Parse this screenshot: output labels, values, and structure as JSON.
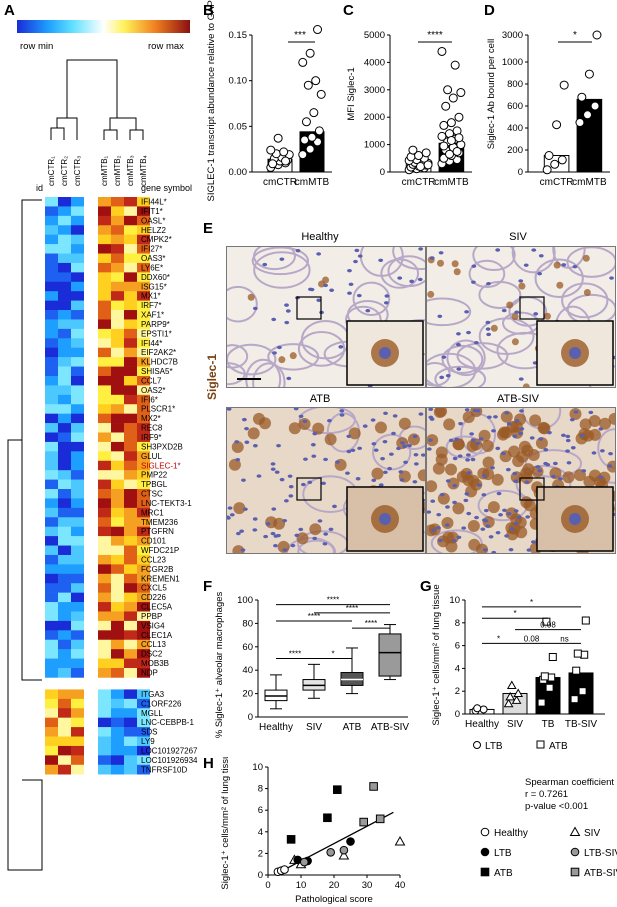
{
  "panels": {
    "A": "A",
    "B": "B",
    "C": "C",
    "D": "D",
    "E": "E",
    "F": "F",
    "G": "G",
    "H": "H"
  },
  "heatmap": {
    "legend_min": "row min",
    "legend_max": "row max",
    "id_label": "id",
    "gene_symbol_label": "gene symbol",
    "columns": [
      "cmCTR₁",
      "cmCTR₂",
      "cmCTR₃",
      "cmMTB₁",
      "cmMTB₂",
      "cmMTB₃",
      "cmMTB₄"
    ],
    "genes": [
      "IFI44L*",
      "IFIT1*",
      "OASL*",
      "HELZ2",
      "CMPK2*",
      "IFI27*",
      "OAS3*",
      "LY6E*",
      "DDX60*",
      "ISG15*",
      "MX1*",
      "IRF7*",
      "XAF1*",
      "PARP9*",
      "EPSTI1*",
      "IFI44*",
      "EIF2AK2*",
      "KLHDC7B",
      "SHISA5*",
      "CCL7",
      "OAS2*",
      "IFI6*",
      "PLSCR1*",
      "MX2*",
      "REC8",
      "IRF9*",
      "SH3PXD2B",
      "GLUL",
      "SIGLEC-1*",
      "PMP22",
      "TPBGL",
      "CTSC",
      "LNC-TEKT3-1",
      "MRC1",
      "TMEM236",
      "PTGFRN",
      "CD101",
      "WFDC21P",
      "CCL23",
      "FCGR2B",
      "KREMEN1",
      "CXCL5",
      "CD226",
      "CLEC5A",
      "PPBP",
      "VSIG4",
      "CLEC1A",
      "CCL13",
      "DSC2",
      "MOB3B",
      "NDP",
      "ITGA3",
      "C1ORF226",
      "MGLL",
      "LNC-CEBPB-1",
      "SDS",
      "LY9",
      "LOC101927267",
      "LOC101926934",
      "TNFRSF10D"
    ],
    "highlight_gene": "SIGLEC-1*",
    "highlight_color": "#c00000"
  },
  "chart_data": [
    {
      "panel": "B",
      "type": "bar",
      "ylabel": "SIGLEC-1 transcript abundance relative to GAPDH",
      "categories": [
        "cmCTR",
        "cmMTB"
      ],
      "values": [
        0.014,
        0.044
      ],
      "ylim": [
        0,
        0.15
      ],
      "yticks": [
        "0.00",
        "0.05",
        "0.10",
        "0.15"
      ],
      "significance": "***",
      "points": [
        [
          0.005,
          0.008,
          0.01,
          0.011,
          0.012,
          0.013,
          0.015,
          0.016,
          0.019,
          0.02,
          0.022,
          0.024,
          0.037,
          0.012,
          0.009
        ],
        [
          0.019,
          0.025,
          0.033,
          0.035,
          0.038,
          0.045,
          0.055,
          0.065,
          0.085,
          0.095,
          0.1,
          0.12,
          0.13,
          0.156
        ]
      ]
    },
    {
      "panel": "C",
      "type": "bar",
      "ylabel": "MFI Siglec-1",
      "categories": [
        "cmCTR",
        "cmMTB"
      ],
      "values": [
        350,
        1050
      ],
      "ylim": [
        0,
        5000
      ],
      "yticks": [
        "0",
        "1000",
        "2000",
        "3000",
        "4000",
        "5000"
      ],
      "significance": "****",
      "points": [
        [
          80,
          120,
          150,
          180,
          220,
          250,
          280,
          300,
          320,
          350,
          380,
          420,
          450,
          500,
          550,
          600,
          700,
          800,
          200,
          260
        ],
        [
          300,
          400,
          450,
          500,
          600,
          700,
          800,
          900,
          1000,
          1100,
          1200,
          1300,
          1400,
          1500,
          1700,
          1800,
          2000,
          2400,
          2700,
          2900,
          3000,
          3900,
          4400,
          650,
          750,
          950,
          1150,
          1250
        ]
      ]
    },
    {
      "panel": "D",
      "type": "bar",
      "ylabel": "Siglec-1 Ab bound per cell",
      "categories": [
        "cmCTR",
        "cmMTB"
      ],
      "values": [
        150,
        660
      ],
      "ylim": [
        0,
        3000
      ],
      "yticks": [
        "0",
        "200",
        "400",
        "600",
        "800",
        "1000",
        "3000"
      ],
      "significance": "*",
      "points": [
        [
          20,
          70,
          110,
          150,
          430,
          790
        ],
        [
          450,
          520,
          600,
          680,
          890,
          1200
        ]
      ]
    },
    {
      "panel": "F",
      "type": "box",
      "ylabel": "% Siglec-1⁺ alveolar macrophages",
      "categories": [
        "Healthy",
        "SIV",
        "ATB",
        "ATB-SIV"
      ],
      "ylim": [
        0,
        100
      ],
      "yticks": [
        "0",
        "20",
        "40",
        "60",
        "80",
        "100"
      ],
      "boxes": [
        {
          "min": 7,
          "q1": 14,
          "median": 18,
          "q3": 23,
          "max": 36
        },
        {
          "min": 16,
          "q1": 23,
          "median": 27,
          "q3": 32,
          "max": 45
        },
        {
          "min": 20,
          "q1": 27,
          "median": 32,
          "q3": 38,
          "max": 59
        },
        {
          "min": 32,
          "q1": 35,
          "median": 55,
          "q3": 71,
          "max": 79
        }
      ],
      "significance": [
        {
          "from": 0,
          "to": 1,
          "label": "****"
        },
        {
          "from": 1,
          "to": 2,
          "label": "*"
        },
        {
          "from": 2,
          "to": 3,
          "label": "****"
        },
        {
          "from": 0,
          "to": 2,
          "label": "****"
        },
        {
          "from": 1,
          "to": 3,
          "label": "****"
        },
        {
          "from": 0,
          "to": 3,
          "label": "****"
        }
      ]
    },
    {
      "panel": "G",
      "type": "bar",
      "ylabel": "Siglec-1⁺ cells/mm² of lung tissue",
      "categories": [
        "Healthy",
        "SIV",
        "TB",
        "TB-SIV"
      ],
      "values": [
        0.4,
        1.8,
        3.2,
        3.6
      ],
      "ylim": [
        0,
        10
      ],
      "yticks": [
        "0",
        "2",
        "4",
        "6",
        "8",
        "10"
      ],
      "legend": [
        {
          "symbol": "circle",
          "label": "LTB"
        },
        {
          "symbol": "square",
          "label": "ATB"
        }
      ],
      "points": [
        [
          0.3,
          0.4,
          0.5
        ],
        [
          0.9,
          1.2,
          1.5,
          1.8,
          2.5
        ],
        [
          1.0,
          2.3,
          3.0,
          3.2,
          3.3,
          5.0,
          8.1
        ],
        [
          1.3,
          2.0,
          3.8,
          5.2,
          5.3,
          8.2
        ]
      ],
      "significance": [
        {
          "from": 0,
          "to": 1,
          "label": "*"
        },
        {
          "from": 1,
          "to": 2,
          "label": "0.08"
        },
        {
          "from": 2,
          "to": 3,
          "label": "ns"
        },
        {
          "from": 1,
          "to": 3,
          "label": "0.08"
        },
        {
          "from": 0,
          "to": 2,
          "label": "*"
        },
        {
          "from": 0,
          "to": 3,
          "label": "*"
        }
      ]
    },
    {
      "panel": "H",
      "type": "scatter",
      "xlabel": "Pathological score",
      "ylabel": "Siglec-1⁺ cells/mm² of lung tissue",
      "xlim": [
        0,
        40
      ],
      "ylim": [
        0,
        10
      ],
      "xticks": [
        "0",
        "10",
        "20",
        "30",
        "40"
      ],
      "yticks": [
        "0",
        "2",
        "4",
        "6",
        "8",
        "10"
      ],
      "series": [
        {
          "name": "Healthy",
          "marker": "circle-open",
          "x": [
            3,
            4,
            5
          ],
          "y": [
            0.3,
            0.4,
            0.5
          ]
        },
        {
          "name": "SIV",
          "marker": "triangle-open",
          "x": [
            8,
            10,
            23,
            40
          ],
          "y": [
            1.4,
            1.0,
            1.8,
            3.1
          ]
        },
        {
          "name": "LTB",
          "marker": "circle-filled",
          "x": [
            9,
            12,
            25
          ],
          "y": [
            1.4,
            1.3,
            3.1
          ]
        },
        {
          "name": "LTB-SIV",
          "marker": "circle-grey",
          "x": [
            11,
            19,
            23
          ],
          "y": [
            1.2,
            2.1,
            2.3
          ]
        },
        {
          "name": "ATB",
          "marker": "square-filled",
          "x": [
            7,
            18,
            21
          ],
          "y": [
            3.3,
            5.3,
            7.9
          ]
        },
        {
          "name": "ATB-SIV",
          "marker": "square-grey",
          "x": [
            29,
            32,
            34
          ],
          "y": [
            4.9,
            8.2,
            5.2
          ]
        }
      ],
      "fit": {
        "x": [
          5,
          38
        ],
        "y": [
          0.5,
          5.8
        ]
      },
      "stats": [
        "Spearman coefficient",
        "r = 0.7261",
        "p-value <0.001"
      ]
    }
  ],
  "micrographs": {
    "side_label": "Siglec-1",
    "titles": [
      "Healthy",
      "SIV",
      "ATB",
      "ATB-SIV"
    ],
    "colors": {
      "background": "#f2ede6",
      "nuclei": "#5b5fb0",
      "stain": "#9a5a25"
    }
  }
}
